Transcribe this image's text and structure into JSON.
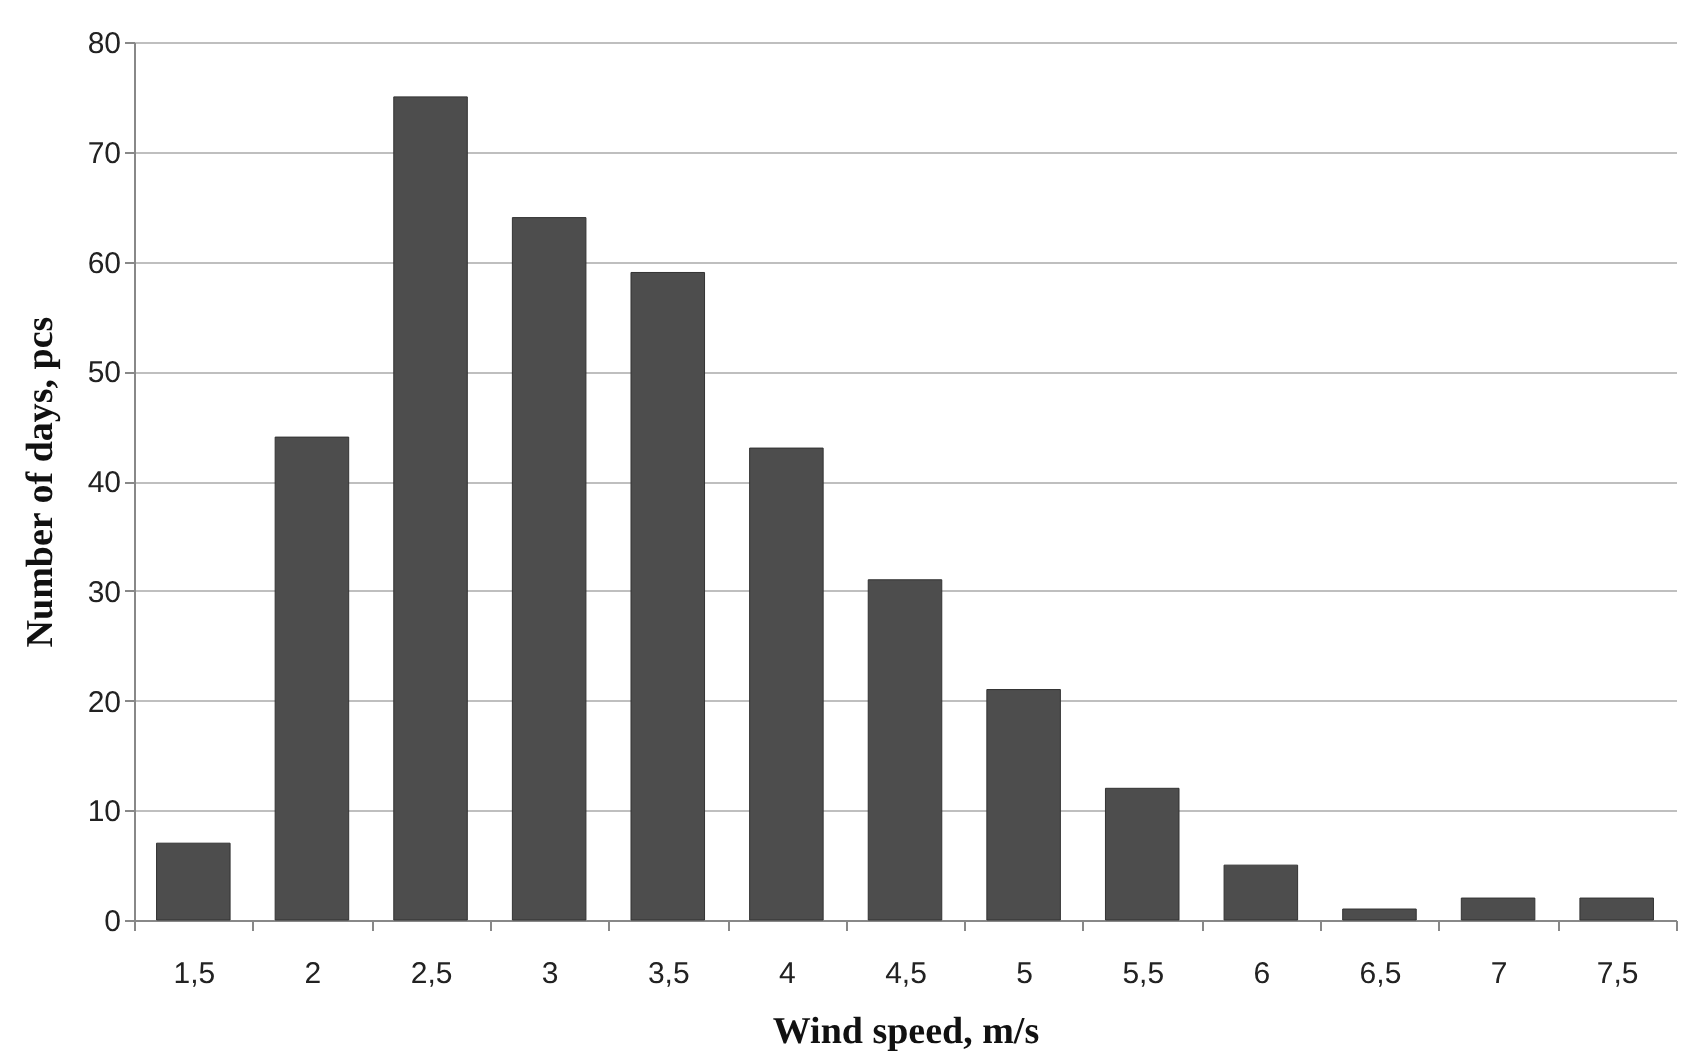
{
  "chart_data": {
    "type": "bar",
    "xlabel": "Wind speed, m/s",
    "ylabel": "Number of days, pcs",
    "categories": [
      "1,5",
      "2",
      "2,5",
      "3",
      "3,5",
      "4",
      "4,5",
      "5",
      "5,5",
      "6",
      "6,5",
      "7",
      "7,5"
    ],
    "values": [
      7,
      44,
      75,
      64,
      59,
      43,
      31,
      21,
      12,
      5,
      1,
      2,
      2
    ],
    "color": "#4d4d4d",
    "ylim": [
      0,
      80
    ],
    "yticks": [
      0,
      10,
      20,
      30,
      40,
      50,
      60,
      70,
      80
    ],
    "grid": "y"
  }
}
